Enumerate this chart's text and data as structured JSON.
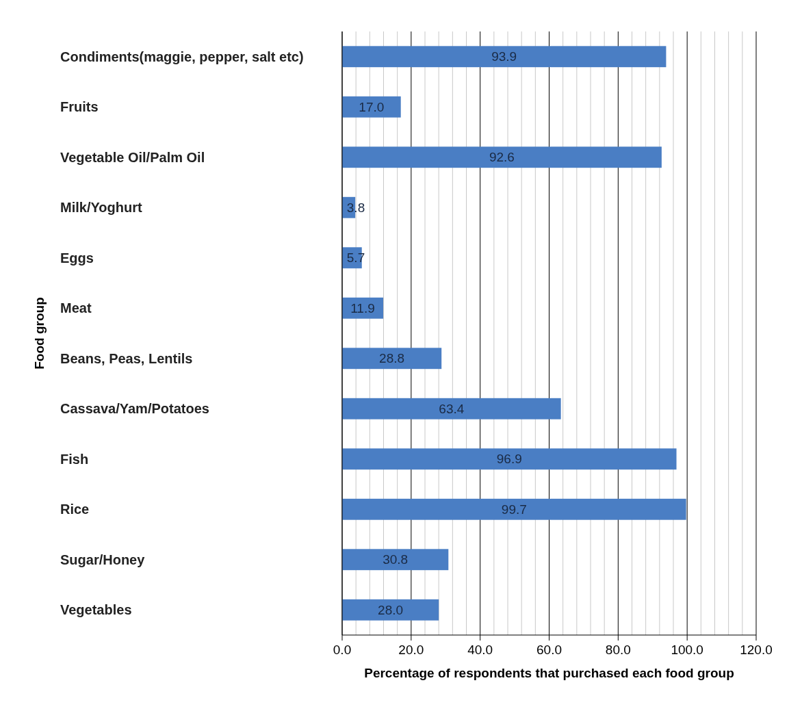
{
  "chart_data": {
    "type": "bar",
    "orientation": "horizontal",
    "xlabel": "Percentage of respondents that purchased each food group",
    "ylabel": "Food group",
    "categories": [
      "Condiments(maggie, pepper, salt etc)",
      "Fruits",
      "Vegetable Oil/Palm Oil",
      "Milk/Yoghurt",
      "Eggs",
      "Meat",
      "Beans, Peas, Lentils",
      "Cassava/Yam/Potatoes",
      "Fish",
      "Rice",
      "Sugar/Honey",
      "Vegetables"
    ],
    "values": [
      93.9,
      17.0,
      92.6,
      3.8,
      5.7,
      11.9,
      28.8,
      63.4,
      96.9,
      99.7,
      30.8,
      28.0
    ],
    "value_labels": [
      "93.9",
      "17.0",
      "92.6",
      "3.8",
      "5.7",
      "11.9",
      "28.8",
      "63.4",
      "96.9",
      "99.7",
      "30.8",
      "28.0"
    ],
    "color": "#4a7ec4",
    "grid": "x",
    "xlim": [
      0,
      120
    ],
    "xticks": [
      {
        "value": 0,
        "label": "0.0"
      },
      {
        "value": 4,
        "label": null
      },
      {
        "value": 8,
        "label": null
      },
      {
        "value": 12,
        "label": null
      },
      {
        "value": 16,
        "label": null
      },
      {
        "value": 20,
        "label": "20.0"
      },
      {
        "value": 24,
        "label": null
      },
      {
        "value": 28,
        "label": null
      },
      {
        "value": 32,
        "label": null
      },
      {
        "value": 36,
        "label": null
      },
      {
        "value": 40,
        "label": "40.0"
      },
      {
        "value": 44,
        "label": null
      },
      {
        "value": 48,
        "label": null
      },
      {
        "value": 52,
        "label": null
      },
      {
        "value": 56,
        "label": null
      },
      {
        "value": 60,
        "label": "60.0"
      },
      {
        "value": 64,
        "label": null
      },
      {
        "value": 68,
        "label": null
      },
      {
        "value": 72,
        "label": null
      },
      {
        "value": 76,
        "label": null
      },
      {
        "value": 80,
        "label": "80.0"
      },
      {
        "value": 84,
        "label": null
      },
      {
        "value": 88,
        "label": null
      },
      {
        "value": 92,
        "label": null
      },
      {
        "value": 96,
        "label": null
      },
      {
        "value": 100,
        "label": "100.0"
      },
      {
        "value": 104,
        "label": null
      },
      {
        "value": 108,
        "label": null
      },
      {
        "value": 112,
        "label": null
      },
      {
        "value": 116,
        "label": null
      },
      {
        "value": 120,
        "label": "120.0"
      }
    ]
  }
}
